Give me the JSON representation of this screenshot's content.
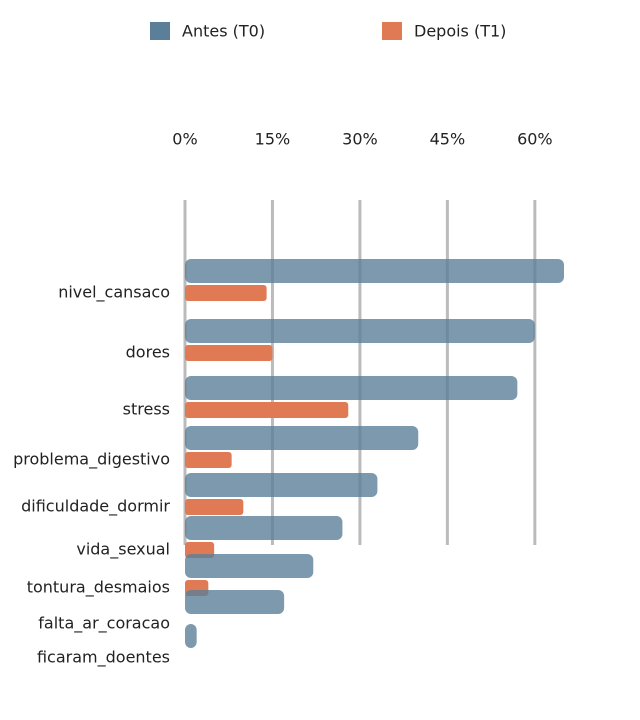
{
  "chart_data": {
    "type": "bar",
    "orientation": "horizontal",
    "categories": [
      "nivel_cansaco",
      "dores",
      "stress",
      "problema_digestivo",
      "dificuldade_dormir",
      "vida_sexual",
      "tontura_desmaios",
      "falta_ar_coracao",
      "ficaram_doentes"
    ],
    "series": [
      {
        "name": "Antes (T0)",
        "color": "#5b7f99",
        "values": [
          65,
          60,
          57,
          40,
          33,
          27,
          22,
          17,
          2
        ]
      },
      {
        "name": "Depois (T1)",
        "color": "#e07a55",
        "values": [
          14,
          15,
          28,
          8,
          10,
          5,
          4,
          0,
          0
        ]
      }
    ],
    "xlim": [
      0,
      65
    ],
    "xticks": [
      {
        "value": 0,
        "label": "0%"
      },
      {
        "value": 15,
        "label": "15%"
      },
      {
        "value": 30,
        "label": "30%"
      },
      {
        "value": 45,
        "label": "45%"
      },
      {
        "value": 60,
        "label": "60%"
      }
    ],
    "grid": true,
    "legend": "top"
  }
}
